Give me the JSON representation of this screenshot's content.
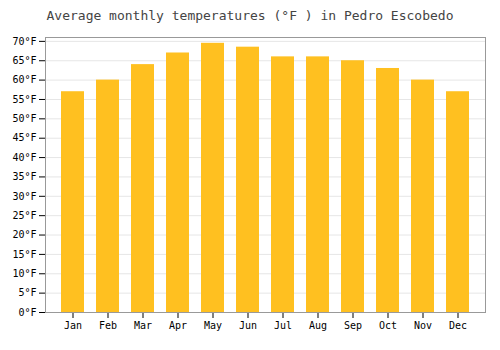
{
  "chart_data": {
    "type": "bar",
    "title": "Average monthly temperatures (°F ) in Pedro Escobedo",
    "categories": [
      "Jan",
      "Feb",
      "Mar",
      "Apr",
      "May",
      "Jun",
      "Jul",
      "Aug",
      "Sep",
      "Oct",
      "Nov",
      "Dec"
    ],
    "values": [
      57,
      60,
      64,
      67,
      69.5,
      68.5,
      66,
      66,
      65,
      63,
      60,
      57
    ],
    "color": "#FFC020",
    "ylim": [
      0,
      71
    ],
    "yticks": [
      {
        "value": 0,
        "label": "0°F"
      },
      {
        "value": 5,
        "label": "5°F"
      },
      {
        "value": 10,
        "label": "10°F"
      },
      {
        "value": 15,
        "label": "15°F"
      },
      {
        "value": 20,
        "label": "20°F"
      },
      {
        "value": 25,
        "label": "25°F"
      },
      {
        "value": 30,
        "label": "30°F"
      },
      {
        "value": 35,
        "label": "35°F"
      },
      {
        "value": 40,
        "label": "40°F"
      },
      {
        "value": 45,
        "label": "45°F"
      },
      {
        "value": 50,
        "label": "50°F"
      },
      {
        "value": 55,
        "label": "55°F"
      },
      {
        "value": 60,
        "label": "60°F"
      },
      {
        "value": 65,
        "label": "65°F"
      },
      {
        "value": 70,
        "label": "70°F"
      }
    ],
    "grid": true
  }
}
